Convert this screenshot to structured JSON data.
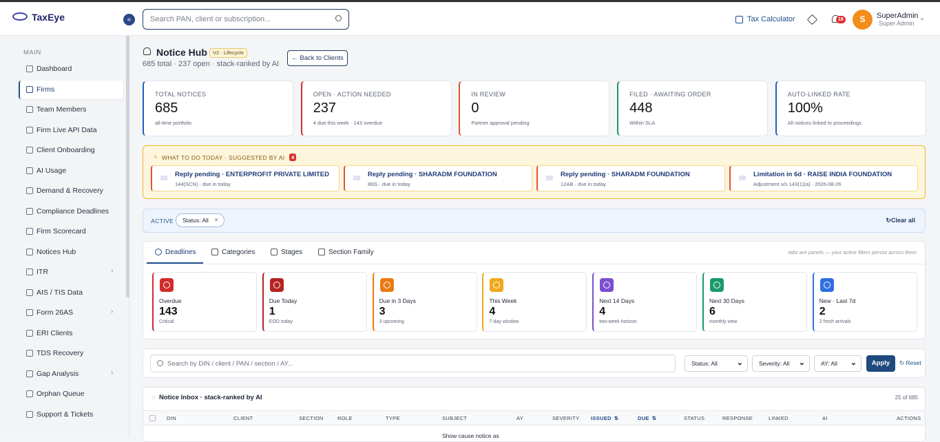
{
  "brand": {
    "name": "TaxEye"
  },
  "topbar": {
    "search_placeholder": "Search PAN, client or subscription...",
    "tax_calculator": "Tax Calculator",
    "notification_count": 18,
    "avatar_initial": "S",
    "user_name": "SuperAdmin",
    "user_role": "Super Admin"
  },
  "sidebar": {
    "section": "MAIN",
    "active": 1,
    "items": [
      {
        "label": "Dashboard"
      },
      {
        "label": "Firms"
      },
      {
        "label": "Team Members"
      },
      {
        "label": "Firm Live API Data"
      },
      {
        "label": "Client Onboarding"
      },
      {
        "label": "AI Usage"
      },
      {
        "label": "Demand & Recovery"
      },
      {
        "label": "Compliance Deadlines"
      },
      {
        "label": "Firm Scorecard"
      },
      {
        "label": "Notices Hub"
      },
      {
        "label": "ITR",
        "submenu": true
      },
      {
        "label": "AIS / TIS Data"
      },
      {
        "label": "Form 26AS",
        "submenu": true
      },
      {
        "label": "ERI Clients"
      },
      {
        "label": "TDS Recovery"
      },
      {
        "label": "Gap Analysis",
        "submenu": true
      },
      {
        "label": "Orphan Queue"
      },
      {
        "label": "Support & Tickets"
      }
    ]
  },
  "header": {
    "title": "Notice Hub",
    "badge": "V2 · Lifecycle",
    "subtitle": "685 total · 237 open · stack-ranked by AI",
    "back_button": "Back to Clients"
  },
  "stats": [
    {
      "label": "TOTAL NOTICES",
      "value": 685,
      "note": "all-time portfolio",
      "color": "#1f5fbf"
    },
    {
      "label": "OPEN · ACTION NEEDED",
      "value": 237,
      "note": "4 due this week · 143 overdue",
      "color": "#d12c2c"
    },
    {
      "label": "IN REVIEW",
      "value": 0,
      "note": "Partner approval pending",
      "color": "#e0552b"
    },
    {
      "label": "FILED · AWAITING ORDER",
      "value": 448,
      "note": "Within SLA",
      "color": "#1f9a55"
    },
    {
      "label": "AUTO-LINKED RATE",
      "value": "100%",
      "note": "All notices linked to proceedings",
      "color": "#1f5fbf"
    }
  ],
  "ai_suggestions": {
    "title": "WHAT TO DO TODAY · SUGGESTED BY AI",
    "count": 4,
    "items": [
      {
        "title": "Reply pending · ENTERPROFIT PRIVATE LIMITED",
        "subtitle": "144(SCN) · due in today"
      },
      {
        "title": "Reply pending · SHARADM FOUNDATION",
        "subtitle": "80G · due in today"
      },
      {
        "title": "Reply pending · SHARADM FOUNDATION",
        "subtitle": "12AB · due in today"
      },
      {
        "title": "Limitation in 6d · RAISE INDIA FOUNDATION",
        "subtitle": "Adjustment u/s 143(1)(a) · 2026-08-26"
      }
    ]
  },
  "filters": {
    "label": "ACTIVE",
    "chips": [
      "Status: All"
    ],
    "clear": "Clear all"
  },
  "tabs": {
    "active": 0,
    "items": [
      "Deadlines",
      "Categories",
      "Stages",
      "Section Family"
    ],
    "note": "tabs are panels — your active filters persist across them"
  },
  "deadlines": [
    {
      "label": "Overdue",
      "value": 143,
      "note": "Critical",
      "color": "#d12c2c"
    },
    {
      "label": "Due Today",
      "value": 1,
      "note": "EOD today",
      "color": "#b52222"
    },
    {
      "label": "Due in 3 Days",
      "value": 3,
      "note": "3 upcoming",
      "color": "#ea7a12"
    },
    {
      "label": "This Week",
      "value": 4,
      "note": "7-day window",
      "color": "#f0a81c"
    },
    {
      "label": "Next 14 Days",
      "value": 4,
      "note": "two-week horizon",
      "color": "#7b4fd0"
    },
    {
      "label": "Next 30 Days",
      "value": 6,
      "note": "monthly view",
      "color": "#1a9a6a"
    },
    {
      "label": "New · Last 7d",
      "value": 2,
      "note": "2 fresh arrivals",
      "color": "#2f6fe0"
    }
  ],
  "search": {
    "placeholder": "Search by DIN / client / PAN / section / AY...",
    "selects": [
      "Status: All",
      "Severity: All",
      "AY: All"
    ],
    "apply": "Apply",
    "reset": "Reset"
  },
  "inbox": {
    "title": "Notice Inbox · stack-ranked by AI",
    "count": "25 of 685",
    "columns": [
      {
        "label": "DIN"
      },
      {
        "label": "CLIENT"
      },
      {
        "label": "SECTION"
      },
      {
        "label": "ROLE"
      },
      {
        "label": "TYPE"
      },
      {
        "label": "SUBJECT"
      },
      {
        "label": "AY"
      },
      {
        "label": "SEVERITY"
      },
      {
        "label": "ISSUED",
        "sortable": true
      },
      {
        "label": "DUE",
        "sortable": true
      },
      {
        "label": "STATUS"
      },
      {
        "label": "RESPONSE"
      },
      {
        "label": "LINKED"
      },
      {
        "label": "AI"
      },
      {
        "label": "ACTIONS"
      }
    ],
    "first_row_subject": "Show cause notice as"
  }
}
